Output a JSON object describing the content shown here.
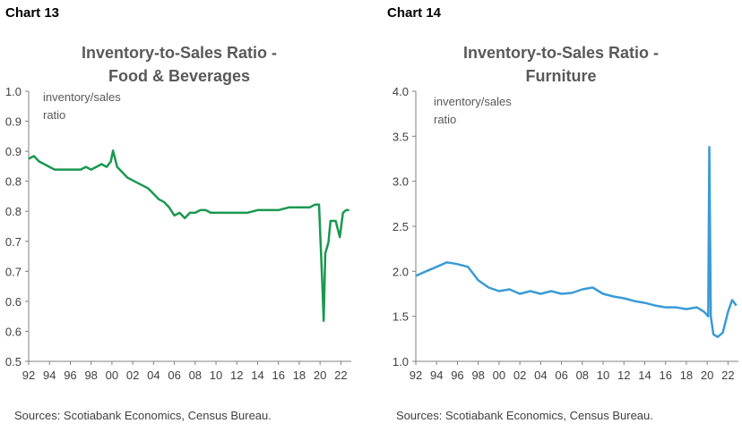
{
  "charts": [
    {
      "chart_label": "Chart 13",
      "title_line1": "Inventory-to-Sales Ratio -",
      "title_line2": "Food & Beverages",
      "annotation_line1": "inventory/sales",
      "annotation_line2": "ratio",
      "sources": "Sources: Scotiabank Economics, Census Bureau.",
      "line_color": "#1a9850"
    },
    {
      "chart_label": "Chart 14",
      "title_line1": "Inventory-to-Sales Ratio -",
      "title_line2": "Furniture",
      "annotation_line1": "inventory/sales",
      "annotation_line2": "ratio",
      "sources": "Sources: Scotiabank Economics, Census Bureau.",
      "line_color": "#3a9bd5"
    }
  ],
  "chart_data": [
    {
      "type": "line",
      "title": "Inventory-to-Sales Ratio - Food & Beverages",
      "xlabel": "",
      "ylabel": "inventory/sales ratio",
      "ylim": [
        0.5,
        1.0
      ],
      "yticks": [
        "0.5",
        "0.6",
        "0.6",
        "0.7",
        "0.7",
        "0.8",
        "0.8",
        "0.9",
        "0.9",
        "1.0"
      ],
      "xlim": [
        1992,
        2023
      ],
      "xticks": [
        "92",
        "94",
        "96",
        "98",
        "00",
        "02",
        "04",
        "06",
        "08",
        "10",
        "12",
        "14",
        "16",
        "18",
        "20",
        "22"
      ],
      "grid": false,
      "legend": "none",
      "series": [
        {
          "x": [
            1992.0,
            1992.5,
            1993.0,
            1993.5,
            1994.0,
            1994.5,
            1995.0,
            1996.0,
            1997.0,
            1997.5,
            1998.0,
            1998.5,
            1999.0,
            1999.5,
            1999.9,
            2000.1,
            2000.5,
            2001.0,
            2001.5,
            2002.0,
            2002.5,
            2003.0,
            2003.5,
            2004.0,
            2004.5,
            2005.0,
            2005.5,
            2006.0,
            2006.5,
            2007.0,
            2007.5,
            2008.0,
            2008.5,
            2009.0,
            2009.5,
            2010.0,
            2011.0,
            2012.0,
            2013.0,
            2014.0,
            2015.0,
            2016.0,
            2017.0,
            2018.0,
            2019.0,
            2019.5,
            2019.9,
            2020.2,
            2020.35,
            2020.5,
            2020.8,
            2021.0,
            2021.5,
            2021.9,
            2022.2,
            2022.5,
            2022.8
          ],
          "y": [
            0.875,
            0.88,
            0.87,
            0.865,
            0.86,
            0.855,
            0.855,
            0.855,
            0.855,
            0.86,
            0.855,
            0.86,
            0.865,
            0.86,
            0.87,
            0.89,
            0.86,
            0.85,
            0.84,
            0.835,
            0.83,
            0.825,
            0.82,
            0.81,
            0.8,
            0.795,
            0.785,
            0.77,
            0.775,
            0.765,
            0.775,
            0.775,
            0.78,
            0.78,
            0.775,
            0.775,
            0.775,
            0.775,
            0.775,
            0.78,
            0.78,
            0.78,
            0.785,
            0.785,
            0.785,
            0.79,
            0.79,
            0.65,
            0.575,
            0.7,
            0.72,
            0.76,
            0.76,
            0.73,
            0.775,
            0.78,
            0.78
          ]
        }
      ]
    },
    {
      "type": "line",
      "title": "Inventory-to-Sales Ratio - Furniture",
      "xlabel": "",
      "ylabel": "inventory/sales ratio",
      "ylim": [
        1.0,
        4.0
      ],
      "yticks": [
        "1.0",
        "1.5",
        "2.0",
        "2.5",
        "3.0",
        "3.5",
        "4.0"
      ],
      "xlim": [
        1992,
        2023
      ],
      "xticks": [
        "92",
        "94",
        "96",
        "98",
        "00",
        "02",
        "04",
        "06",
        "08",
        "10",
        "12",
        "14",
        "16",
        "18",
        "20",
        "22"
      ],
      "grid": false,
      "legend": "none",
      "series": [
        {
          "x": [
            1992.0,
            1993.0,
            1994.0,
            1995.0,
            1996.0,
            1997.0,
            1998.0,
            1999.0,
            2000.0,
            2001.0,
            2002.0,
            2003.0,
            2004.0,
            2005.0,
            2006.0,
            2007.0,
            2008.0,
            2009.0,
            2010.0,
            2011.0,
            2012.0,
            2013.0,
            2014.0,
            2015.0,
            2016.0,
            2017.0,
            2018.0,
            2019.0,
            2019.7,
            2020.1,
            2020.2,
            2020.35,
            2020.6,
            2021.0,
            2021.5,
            2022.0,
            2022.4,
            2022.8
          ],
          "y": [
            1.95,
            2.0,
            2.05,
            2.1,
            2.08,
            2.05,
            1.9,
            1.82,
            1.78,
            1.8,
            1.75,
            1.78,
            1.75,
            1.78,
            1.75,
            1.76,
            1.8,
            1.82,
            1.75,
            1.72,
            1.7,
            1.67,
            1.65,
            1.62,
            1.6,
            1.6,
            1.58,
            1.6,
            1.55,
            1.5,
            3.38,
            1.5,
            1.3,
            1.27,
            1.32,
            1.55,
            1.68,
            1.62
          ]
        }
      ]
    }
  ]
}
